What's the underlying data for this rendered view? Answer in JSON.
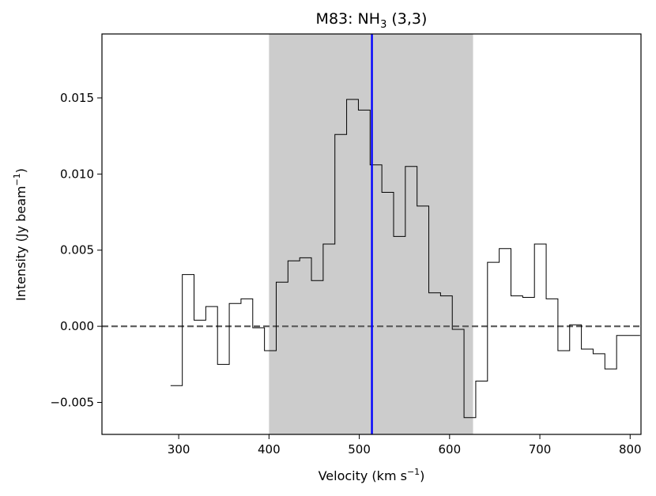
{
  "chart_data": {
    "type": "line",
    "title": "M83: NH",
    "title_sub": "3",
    "title_tail": " (3,3)",
    "xlabel": "Velocity (km s",
    "xlabel_sup": "−1",
    "xlabel_tail": ")",
    "ylabel": "Intensity (Jy beam",
    "ylabel_sup": "−1",
    "ylabel_tail": ")",
    "xlim": [
      215,
      812
    ],
    "ylim": [
      -0.0071,
      0.0192
    ],
    "xticks": [
      300,
      400,
      500,
      600,
      700,
      800
    ],
    "xtick_labels": [
      "300",
      "400",
      "500",
      "600",
      "700",
      "800"
    ],
    "yticks": [
      -0.005,
      0.0,
      0.005,
      0.01,
      0.015
    ],
    "ytick_labels": [
      "−0.005",
      "0.000",
      "0.005",
      "0.010",
      "0.015"
    ],
    "series": [
      {
        "drawstyle": "steps",
        "x": [
          291,
          304,
          317,
          330,
          343,
          356,
          369,
          382,
          395,
          408,
          421,
          434,
          447,
          460,
          473,
          486,
          499,
          512,
          525,
          538,
          551,
          564,
          577,
          590,
          603,
          616,
          629,
          642,
          655,
          668,
          681,
          694,
          707,
          720,
          733,
          746,
          759,
          772,
          785,
          798,
          811
        ],
        "y": [
          -0.0039,
          0.0034,
          0.0004,
          0.0013,
          -0.0025,
          0.0015,
          0.0018,
          -0.0001,
          -0.0016,
          0.0029,
          0.0043,
          0.0045,
          0.003,
          0.0054,
          0.0126,
          0.0149,
          0.0142,
          0.0106,
          0.0088,
          0.0059,
          0.0105,
          0.0079,
          0.0022,
          0.002,
          -0.0002,
          -0.006,
          -0.0036,
          0.0042,
          0.0051,
          0.002,
          0.0019,
          0.0054,
          0.0018,
          -0.0016,
          0.0001,
          -0.0015,
          -0.0018,
          -0.0028,
          -0.0006,
          -0.0006,
          -0.0006
        ],
        "color": "#000000"
      }
    ],
    "shaded_region": {
      "x": [
        400,
        626
      ],
      "color": "#cccccc"
    },
    "vline": {
      "x": 514,
      "color": "#0000ff"
    },
    "hline": {
      "y": 0.0,
      "color": "#606060",
      "style": "dashed"
    },
    "grid": false,
    "legend": "none"
  }
}
